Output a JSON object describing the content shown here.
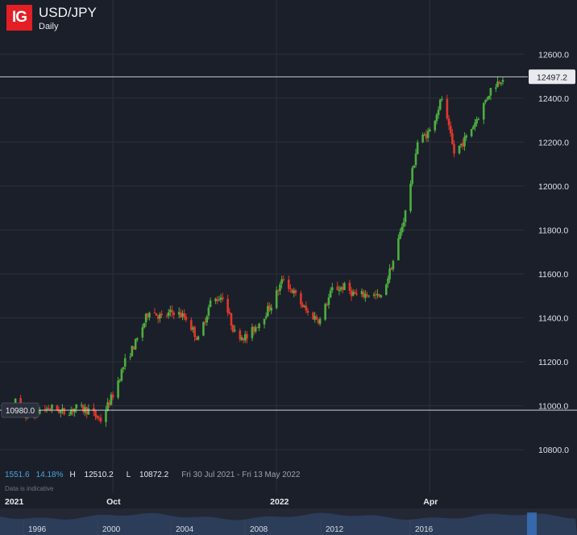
{
  "header": {
    "logo_text": "IG",
    "symbol": "USD/JPY",
    "timeframe": "Daily"
  },
  "stats": {
    "change": "1551.6",
    "change_pct": "14.18%",
    "high_label": "H",
    "high": "12510.2",
    "low_label": "L",
    "low": "10872.2",
    "range": "Fri 30 Jul 2021 - Fri 13 May 2022"
  },
  "disclaimer": "Data is indicative",
  "price_markers": {
    "current": "12497.2",
    "reference": "10980.0"
  },
  "colors": {
    "up": "#4caf3f",
    "down": "#e0382b",
    "brand": "#e31e24",
    "background": "#1b1f2a"
  },
  "chart_data": {
    "type": "candlestick",
    "y_ticks": [
      "10800.0",
      "11000.0",
      "11200.0",
      "11400.0",
      "11600.0",
      "11800.0",
      "12000.0",
      "12200.0",
      "12400.0",
      "12600.0"
    ],
    "ylim": [
      10720,
      12700
    ],
    "x_tick_labels": [
      {
        "label": "2021",
        "date": "2021-07-30"
      },
      {
        "label": "Oct",
        "date": "2021-10-01"
      },
      {
        "label": "2022",
        "date": "2022-01-03"
      },
      {
        "label": "Apr",
        "date": "2022-04-01"
      }
    ],
    "vertical_gridlines": [
      "2021-10-01",
      "2022-01-03",
      "2022-04-01"
    ],
    "date_range": [
      "2021-07-30",
      "2022-05-13"
    ],
    "navigator_labels": [
      "1996",
      "2000",
      "2004",
      "2008",
      "2012",
      "2016"
    ],
    "close_series": [
      [
        "2021-07-30",
        10960
      ],
      [
        "2021-08-06",
        11020
      ],
      [
        "2021-08-13",
        10940
      ],
      [
        "2021-08-20",
        10980
      ],
      [
        "2021-08-27",
        10990
      ],
      [
        "2021-09-03",
        10970
      ],
      [
        "2021-09-10",
        10990
      ],
      [
        "2021-09-17",
        10980
      ],
      [
        "2021-09-24",
        10935
      ],
      [
        "2021-10-01",
        11050
      ],
      [
        "2021-10-08",
        11200
      ],
      [
        "2021-10-15",
        11300
      ],
      [
        "2021-10-22",
        11440
      ],
      [
        "2021-10-29",
        11400
      ],
      [
        "2021-11-05",
        11430
      ],
      [
        "2021-11-12",
        11400
      ],
      [
        "2021-11-19",
        11300
      ],
      [
        "2021-11-26",
        11470
      ],
      [
        "2021-12-03",
        11500
      ],
      [
        "2021-12-10",
        11330
      ],
      [
        "2021-12-17",
        11310
      ],
      [
        "2021-12-24",
        11380
      ],
      [
        "2021-12-31",
        11460
      ],
      [
        "2022-01-07",
        11580
      ],
      [
        "2022-01-14",
        11500
      ],
      [
        "2022-01-21",
        11420
      ],
      [
        "2022-01-28",
        11390
      ],
      [
        "2022-02-04",
        11530
      ],
      [
        "2022-02-11",
        11540
      ],
      [
        "2022-02-18",
        11500
      ],
      [
        "2022-02-25",
        11510
      ],
      [
        "2022-03-04",
        11490
      ],
      [
        "2022-03-11",
        11660
      ],
      [
        "2022-03-18",
        11880
      ],
      [
        "2022-03-25",
        12200
      ],
      [
        "2022-04-01",
        12250
      ],
      [
        "2022-04-08",
        12400
      ],
      [
        "2022-04-15",
        12150
      ],
      [
        "2022-04-22",
        12220
      ],
      [
        "2022-04-29",
        12320
      ],
      [
        "2022-05-06",
        12440
      ],
      [
        "2022-05-13",
        12497
      ]
    ]
  }
}
